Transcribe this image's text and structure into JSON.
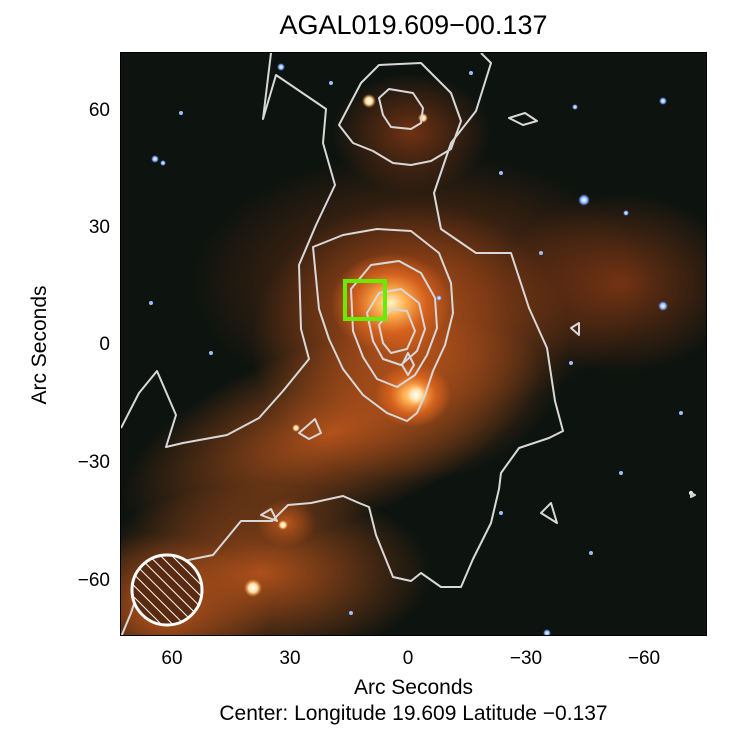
{
  "figure": {
    "title": "AGAL019.609−00.137",
    "ylabel": "Arc Seconds",
    "xlabel": "Arc Seconds",
    "center_note": "Center:  Longitude 19.609 Latitude −0.137",
    "yticks": [
      "60",
      "30",
      "0",
      "−30",
      "−60"
    ],
    "xticks": [
      "60",
      "30",
      "0",
      "−30",
      "−60"
    ]
  },
  "colors": {
    "background": "#0d130f",
    "nebula": "#e0661e",
    "contour": "#d8d8d8",
    "marker_box": "#66ee00",
    "beam": "#ffffff"
  },
  "icons": {
    "beam": "hatched-circle-beam-icon",
    "marker": "green-square-marker-icon"
  }
}
